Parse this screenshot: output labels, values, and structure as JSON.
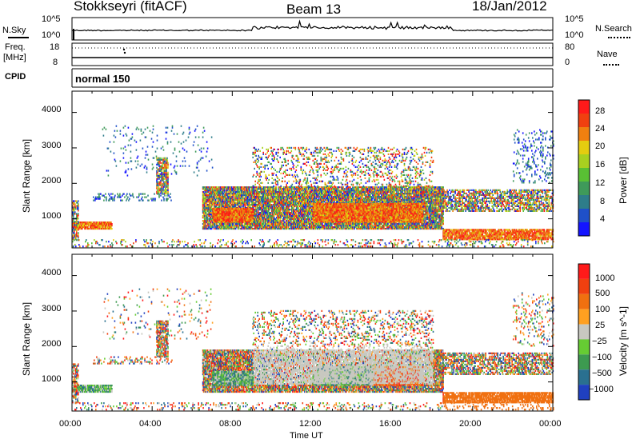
{
  "header": {
    "station": "Stokkseyri (fitACF)",
    "beam": "Beam 13",
    "date": "18/Jan/2012"
  },
  "top_panels": {
    "nsky_label": "N.Sky",
    "nsearch_label": "N.Search",
    "nsky_ticks": [
      "10^5",
      "10^0"
    ],
    "nsearch_ticks": [
      "10^5",
      "10^0"
    ],
    "freq_label": "Freq.",
    "freq_unit": "[MHz]",
    "freq_ticks": [
      "18",
      "8"
    ],
    "nave_label": "Nave",
    "nave_ticks": [
      "80",
      "0"
    ],
    "cpid_label": "CPID",
    "cpid_value": "normal 150"
  },
  "chart_data": [
    {
      "type": "heatmap",
      "panel": "power",
      "xlabel": "",
      "ylabel": "Slant Range [km]",
      "xlim": [
        0,
        24
      ],
      "ylim": [
        180,
        4600
      ],
      "yticks": [
        "1000",
        "2000",
        "3000",
        "4000"
      ],
      "colorbar": {
        "label": "Power [dB]",
        "ticks": [
          "28",
          "24",
          "20",
          "16",
          "12",
          "8",
          "4"
        ],
        "colors": [
          "#1414ff",
          "#1f50c8",
          "#2e7d8a",
          "#3f9a5a",
          "#59c034",
          "#a8d020",
          "#e4cc10",
          "#f08010",
          "#f04010",
          "#ff1a1a"
        ]
      }
    },
    {
      "type": "heatmap",
      "panel": "velocity",
      "xlabel": "Time UT",
      "ylabel": "Slant Range [km]",
      "xlim": [
        0,
        24
      ],
      "ylim": [
        180,
        4600
      ],
      "yticks": [
        "1000",
        "2000",
        "3000",
        "4000"
      ],
      "xticks": [
        "00:00",
        "04:00",
        "08:00",
        "12:00",
        "16:00",
        "20:00",
        "00:00"
      ],
      "colorbar": {
        "label": "Velocity [m s^-1]",
        "ticks": [
          "1000",
          "500",
          "100",
          "25",
          "−25",
          "−100",
          "−500",
          "−1000"
        ],
        "colors": [
          "#2040c0",
          "#2a7090",
          "#3d9a50",
          "#66cc33",
          "#c8c8c0",
          "#ffa020",
          "#f07010",
          "#f04010",
          "#ff1a1a"
        ]
      }
    }
  ]
}
